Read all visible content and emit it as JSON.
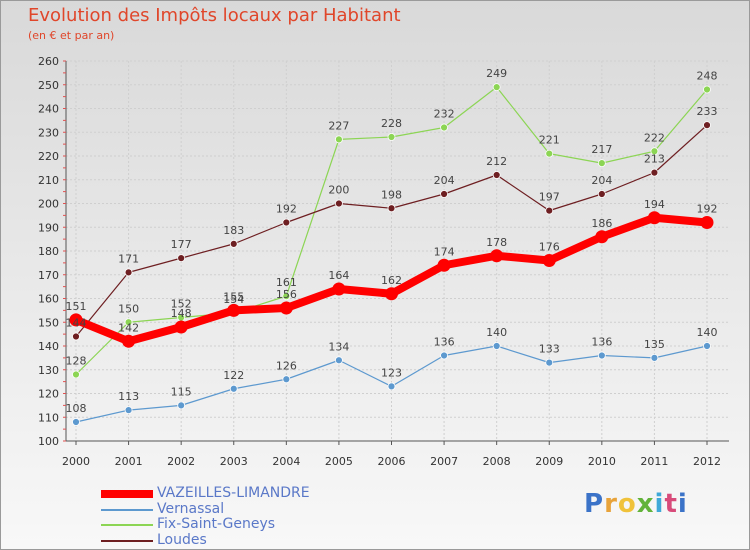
{
  "title": "Evolution des Impôts locaux par Habitant",
  "subtitle": "(en € et par an)",
  "logo": "Proxiti",
  "chart_data": {
    "type": "line",
    "title": "Evolution des Impôts locaux par Habitant",
    "subtitle": "(en € et par an)",
    "xlabel": "",
    "ylabel": "",
    "x": [
      "2000",
      "2001",
      "2002",
      "2003",
      "2004",
      "2005",
      "2006",
      "2007",
      "2008",
      "2009",
      "2010",
      "2011",
      "2012"
    ],
    "ylim": [
      100,
      260
    ],
    "yticks": [
      100,
      110,
      120,
      130,
      140,
      150,
      160,
      170,
      180,
      190,
      200,
      210,
      220,
      230,
      240,
      250,
      260
    ],
    "grid": true,
    "legend_position": "bottom-left",
    "series": [
      {
        "name": "Vernassal",
        "color": "#5d99cf",
        "values": [
          108,
          113,
          115,
          122,
          126,
          134,
          123,
          136,
          140,
          133,
          136,
          135,
          140
        ]
      },
      {
        "name": "Fix-Saint-Geneys",
        "color": "#8cd554",
        "values": [
          128,
          150,
          152,
          154,
          161,
          227,
          228,
          232,
          249,
          221,
          217,
          222,
          248
        ]
      },
      {
        "name": "Loudes",
        "color": "#6e1f22",
        "values": [
          144,
          171,
          177,
          183,
          192,
          200,
          198,
          204,
          212,
          197,
          204,
          213,
          233
        ]
      },
      {
        "name": "VAZEILLES-LIMANDRE",
        "color": "#ff0000",
        "values": [
          151,
          142,
          148,
          155,
          156,
          164,
          162,
          174,
          178,
          176,
          186,
          194,
          192
        ]
      }
    ]
  }
}
